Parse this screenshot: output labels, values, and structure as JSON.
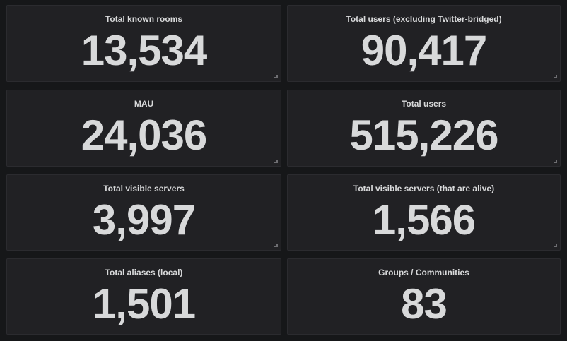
{
  "panels": [
    {
      "title": "Total known rooms",
      "value": "13,534"
    },
    {
      "title": "Total users (excluding Twitter-bridged)",
      "value": "90,417"
    },
    {
      "title": "MAU",
      "value": "24,036"
    },
    {
      "title": "Total users",
      "value": "515,226"
    },
    {
      "title": "Total visible servers",
      "value": "3,997"
    },
    {
      "title": "Total visible servers (that are alive)",
      "value": "1,566"
    },
    {
      "title": "Total aliases (local)",
      "value": "1,501"
    },
    {
      "title": "Groups / Communities",
      "value": "83"
    }
  ],
  "colors": {
    "background": "#161719",
    "panel": "#212124",
    "text": "#d8d9da"
  }
}
